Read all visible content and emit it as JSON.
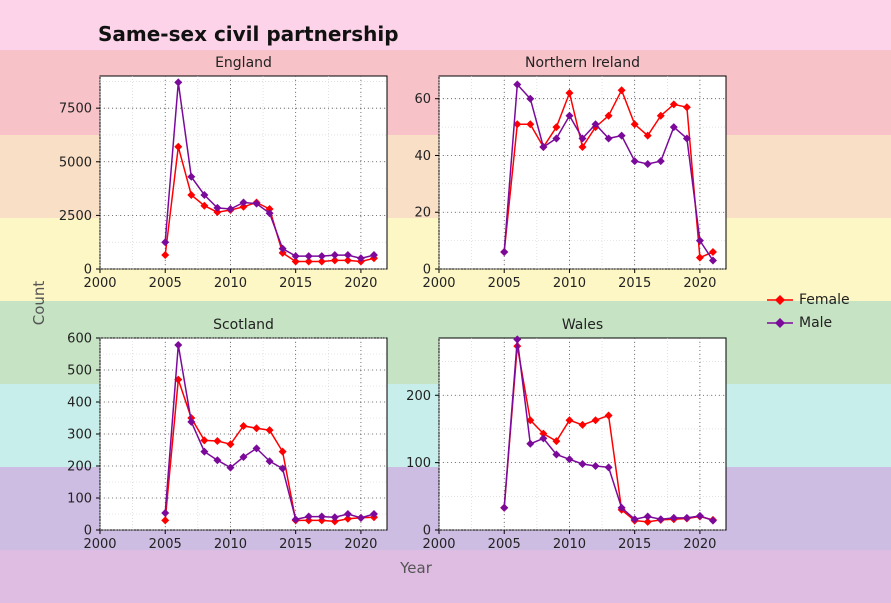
{
  "background_bands": [
    "#fcd3e8",
    "#f8c3c8",
    "#f9dfc5",
    "#fdf7c5",
    "#c6e4c4",
    "#c7eeea",
    "#cebde3",
    "#dfbde3"
  ],
  "title": "Same-sex civil partnership",
  "xlabel": "Year",
  "ylabel": "Count",
  "legend": [
    {
      "label": "Female",
      "color": "#ff0000"
    },
    {
      "label": "Male",
      "color": "#7b0a9b"
    }
  ],
  "chart_data": [
    {
      "type": "line",
      "title": "England",
      "xlim": [
        2000,
        2022
      ],
      "ylim": [
        0,
        9000
      ],
      "xticks": [
        2000,
        2005,
        2010,
        2015,
        2020
      ],
      "yticks": [
        0,
        2500,
        5000,
        7500
      ],
      "x": [
        2005,
        2006,
        2007,
        2008,
        2009,
        2010,
        2011,
        2012,
        2013,
        2014,
        2015,
        2016,
        2017,
        2018,
        2019,
        2020,
        2021
      ],
      "series": [
        {
          "name": "Female",
          "color": "#ff0000",
          "values": [
            650,
            5700,
            3450,
            2950,
            2650,
            2750,
            2900,
            3100,
            2800,
            750,
            350,
            350,
            350,
            400,
            400,
            350,
            500
          ]
        },
        {
          "name": "Male",
          "color": "#7b0a9b",
          "values": [
            1250,
            8700,
            4300,
            3450,
            2850,
            2800,
            3100,
            3050,
            2600,
            950,
            600,
            600,
            600,
            650,
            650,
            500,
            650
          ]
        }
      ]
    },
    {
      "type": "line",
      "title": "Northern Ireland",
      "xlim": [
        2000,
        2022
      ],
      "ylim": [
        0,
        68
      ],
      "xticks": [
        2000,
        2005,
        2010,
        2015,
        2020
      ],
      "yticks": [
        0,
        20,
        40,
        60
      ],
      "x": [
        2005,
        2006,
        2007,
        2008,
        2009,
        2010,
        2011,
        2012,
        2013,
        2014,
        2015,
        2016,
        2017,
        2018,
        2019,
        2020,
        2021
      ],
      "series": [
        {
          "name": "Female",
          "color": "#ff0000",
          "values": [
            6,
            51,
            51,
            43,
            50,
            62,
            43,
            50,
            54,
            63,
            51,
            47,
            54,
            58,
            57,
            4,
            6
          ]
        },
        {
          "name": "Male",
          "color": "#7b0a9b",
          "values": [
            6,
            65,
            60,
            43,
            46,
            54,
            46,
            51,
            46,
            47,
            38,
            37,
            38,
            50,
            46,
            10,
            3
          ]
        }
      ]
    },
    {
      "type": "line",
      "title": "Scotland",
      "xlim": [
        2000,
        2022
      ],
      "ylim": [
        0,
        600
      ],
      "xticks": [
        2000,
        2005,
        2010,
        2015,
        2020
      ],
      "yticks": [
        0,
        100,
        200,
        300,
        400,
        500,
        600
      ],
      "x": [
        2005,
        2006,
        2007,
        2008,
        2009,
        2010,
        2011,
        2012,
        2013,
        2014,
        2015,
        2016,
        2017,
        2018,
        2019,
        2020,
        2021
      ],
      "series": [
        {
          "name": "Female",
          "color": "#ff0000",
          "values": [
            30,
            470,
            350,
            280,
            278,
            268,
            325,
            318,
            312,
            245,
            30,
            30,
            30,
            27,
            35,
            38,
            40
          ]
        },
        {
          "name": "Male",
          "color": "#7b0a9b",
          "values": [
            53,
            578,
            338,
            245,
            218,
            195,
            228,
            255,
            215,
            192,
            33,
            42,
            42,
            40,
            50,
            38,
            50
          ]
        }
      ]
    },
    {
      "type": "line",
      "title": "Wales",
      "xlim": [
        2000,
        2022
      ],
      "ylim": [
        0,
        285
      ],
      "xticks": [
        2000,
        2005,
        2010,
        2015,
        2020
      ],
      "yticks": [
        0,
        100,
        200
      ],
      "x": [
        2005,
        2006,
        2007,
        2008,
        2009,
        2010,
        2011,
        2012,
        2013,
        2014,
        2015,
        2016,
        2017,
        2018,
        2019,
        2020,
        2021
      ],
      "series": [
        {
          "name": "Female",
          "color": "#ff0000",
          "values": [
            33,
            273,
            163,
            143,
            132,
            163,
            156,
            163,
            170,
            30,
            14,
            12,
            15,
            16,
            17,
            20,
            15
          ]
        },
        {
          "name": "Male",
          "color": "#7b0a9b",
          "values": [
            33,
            283,
            128,
            136,
            112,
            105,
            98,
            95,
            93,
            33,
            16,
            20,
            16,
            18,
            18,
            21,
            14
          ]
        }
      ]
    }
  ]
}
